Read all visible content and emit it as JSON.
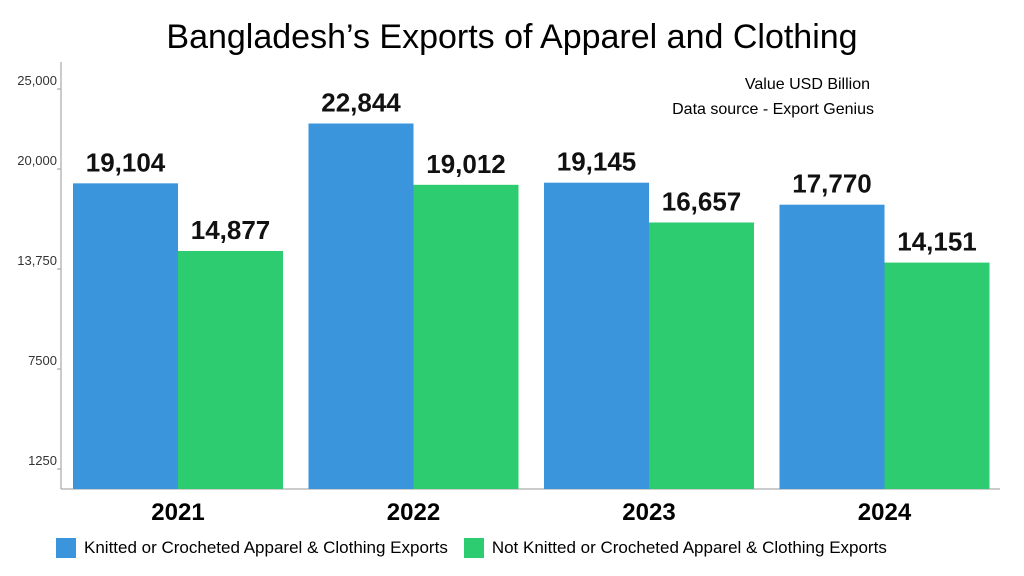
{
  "chart_data": {
    "type": "bar",
    "title": "Bangladesh’s Exports of Apparel and Clothing",
    "notes": [
      "Value USD Billion",
      "Data source - Export Genius"
    ],
    "categories": [
      "2021",
      "2022",
      "2023",
      "2024"
    ],
    "series": [
      {
        "name": "Knitted or Crocheted Apparel & Clothing Exports",
        "color": "#3a95dd",
        "values": [
          19104,
          22844,
          19145,
          17770
        ],
        "labels": [
          "19,104",
          "22,844",
          "19,145",
          "17,770"
        ]
      },
      {
        "name": "Not Knitted or Crocheted Apparel & Clothing Exports",
        "color": "#2ecc71",
        "values": [
          14877,
          19012,
          16657,
          14151
        ],
        "labels": [
          "14,877",
          "19,012",
          "16,657",
          "14,151"
        ]
      }
    ],
    "y_ticks": [
      1250,
      7500,
      13750,
      20000,
      25000
    ],
    "y_tick_labels": [
      "1250",
      "7500",
      "13,750",
      "20,000",
      "25,000"
    ],
    "ylim": [
      0,
      25000
    ],
    "grid": false,
    "legend_position": "bottom"
  }
}
